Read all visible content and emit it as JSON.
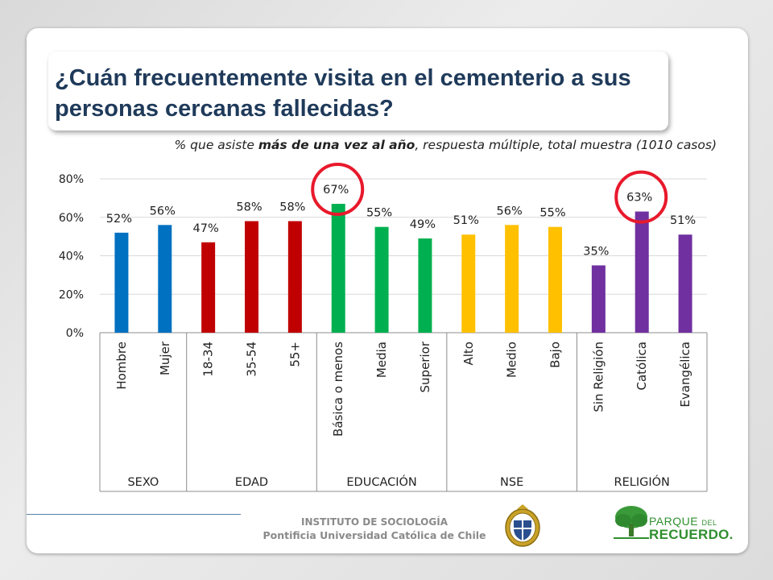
{
  "slide": {
    "title": "¿Cuán frecuentemente visita en el cementerio a sus personas cercanas fallecidas?",
    "subtitle_pre": "% que asiste ",
    "subtitle_bold": "más de una vez al año",
    "subtitle_post": ", respuesta múltiple, total muestra (1010 casos)"
  },
  "footer": {
    "line1": "INSTITUTO DE SOCIOLOGÍA",
    "line2": "Pontificia Universidad Católica de Chile",
    "logo_word1": "PARQUE",
    "logo_word2": "DEL",
    "logo_word3": "RECUERDO."
  },
  "chart_data": {
    "type": "bar",
    "ylim": [
      0,
      80
    ],
    "yticks": [
      "0%",
      "20%",
      "40%",
      "60%",
      "80%"
    ],
    "grid": true,
    "categories": [
      "Hombre",
      "Mujer",
      "18-34",
      "35-54",
      "55+",
      "Básica o menos",
      "Media",
      "Superior",
      "Alto",
      "Medio",
      "Bajo",
      "Sin Religión",
      "Católica",
      "Evangélica"
    ],
    "values": [
      52,
      56,
      47,
      58,
      58,
      67,
      55,
      49,
      51,
      56,
      55,
      35,
      63,
      51
    ],
    "data_labels": [
      "52%",
      "56%",
      "47%",
      "58%",
      "58%",
      "67%",
      "55%",
      "49%",
      "51%",
      "56%",
      "55%",
      "35%",
      "63%",
      "51%"
    ],
    "groups": [
      {
        "name": "SEXO",
        "count": 2,
        "color": "#0070c0"
      },
      {
        "name": "EDAD",
        "count": 3,
        "color": "#c00000"
      },
      {
        "name": "EDUCACIÓN",
        "count": 3,
        "color": "#00b050"
      },
      {
        "name": "NSE",
        "count": 3,
        "color": "#ffc000"
      },
      {
        "name": "RELIGIÓN",
        "count": 3,
        "color": "#7030a0"
      }
    ],
    "highlighted": [
      "Básica o menos",
      "Católica"
    ],
    "highlight_color": "#e8192c"
  }
}
